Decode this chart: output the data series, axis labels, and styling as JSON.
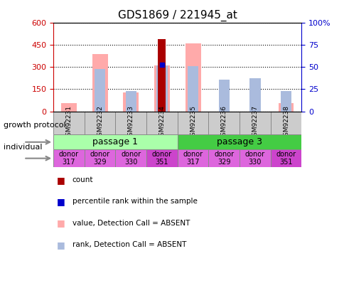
{
  "title": "GDS1869 / 221945_at",
  "samples": [
    "GSM92231",
    "GSM92232",
    "GSM92233",
    "GSM92234",
    "GSM92235",
    "GSM92236",
    "GSM92237",
    "GSM92238"
  ],
  "count_values": [
    null,
    null,
    null,
    490,
    null,
    null,
    null,
    null
  ],
  "count_color": "#aa0000",
  "value_absent": [
    55,
    390,
    130,
    310,
    460,
    null,
    null,
    55
  ],
  "rank_absent": [
    null,
    290,
    140,
    310,
    305,
    215,
    225,
    140
  ],
  "value_absent_color": "#ffaaaa",
  "rank_absent_color": "#aabbdd",
  "percentile_rank_value": [
    null,
    null,
    null,
    315,
    null,
    null,
    null,
    null
  ],
  "percentile_rank_color": "#0000cc",
  "ylim_left": [
    0,
    600
  ],
  "ylim_right": [
    0,
    100
  ],
  "yticks_left": [
    0,
    150,
    300,
    450,
    600
  ],
  "yticks_right": [
    0,
    25,
    50,
    75,
    100
  ],
  "ytick_labels_left": [
    "0",
    "150",
    "300",
    "450",
    "600"
  ],
  "ytick_labels_right": [
    "0",
    "25",
    "50",
    "75",
    "100%"
  ],
  "left_ycolor": "#cc0000",
  "right_ycolor": "#0000cc",
  "passage_groups": [
    {
      "label": "passage 1",
      "start": 0,
      "end": 4,
      "color": "#aaffaa"
    },
    {
      "label": "passage 3",
      "start": 4,
      "end": 8,
      "color": "#44cc44"
    }
  ],
  "sample_box_color": "#cccccc",
  "individual_labels": [
    "donor\n317",
    "donor\n329",
    "donor\n330",
    "donor\n351",
    "donor\n317",
    "donor\n329",
    "donor\n330",
    "donor\n351"
  ],
  "individual_colors": [
    "#ee88ee",
    "#ee88ee",
    "#ee88ee",
    "#ee88ee",
    "#ee88ee",
    "#ee88ee",
    "#ee88ee",
    "#ee88ee"
  ],
  "legend_items": [
    {
      "label": "count",
      "color": "#aa0000"
    },
    {
      "label": "percentile rank within the sample",
      "color": "#0000cc"
    },
    {
      "label": "value, Detection Call = ABSENT",
      "color": "#ffaaaa"
    },
    {
      "label": "rank, Detection Call = ABSENT",
      "color": "#aabbdd"
    }
  ],
  "growth_protocol_label": "growth protocol",
  "individual_label": "individual",
  "background_color": "#ffffff"
}
